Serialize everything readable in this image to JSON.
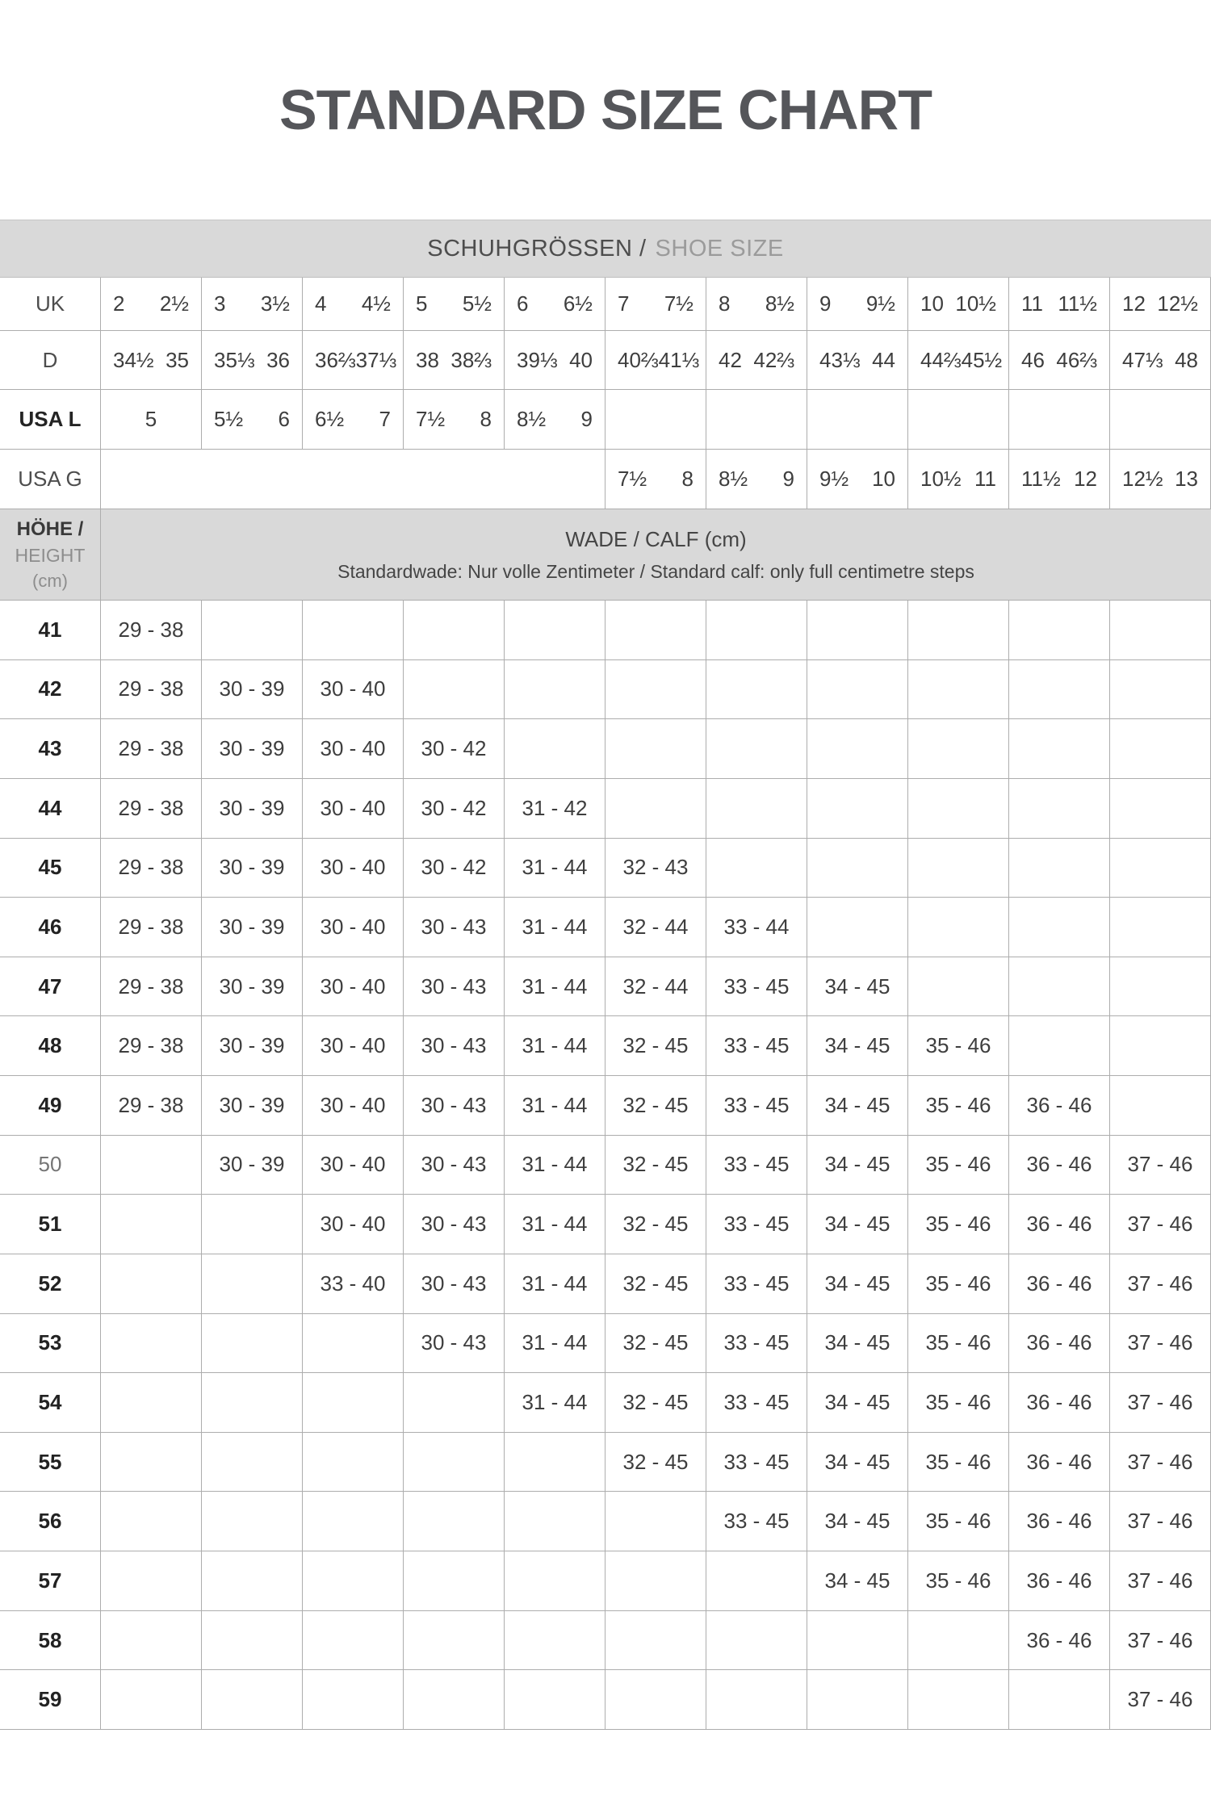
{
  "title": "STANDARD SIZE CHART",
  "shoe_size_header": {
    "de": "SCHUHGRÖSSEN /",
    "en": "SHOE SIZE"
  },
  "shoe_table": {
    "rows": [
      {
        "label": "UK",
        "style": "regular",
        "lead_merge": 0,
        "cells": [
          [
            "2",
            "2½"
          ],
          [
            "3",
            "3½"
          ],
          [
            "4",
            "4½"
          ],
          [
            "5",
            "5½"
          ],
          [
            "6",
            "6½"
          ],
          [
            "7",
            "7½"
          ],
          [
            "8",
            "8½"
          ],
          [
            "9",
            "9½"
          ],
          [
            "10",
            "10½"
          ],
          [
            "11",
            "11½"
          ],
          [
            "12",
            "12½"
          ]
        ]
      },
      {
        "label": "D",
        "style": "regular",
        "lead_merge": 0,
        "cells": [
          [
            "34½",
            "35"
          ],
          [
            "35⅓",
            "36"
          ],
          [
            "36⅔",
            "37⅓"
          ],
          [
            "38",
            "38⅔"
          ],
          [
            "39⅓",
            "40"
          ],
          [
            "40⅔",
            "41⅓"
          ],
          [
            "42",
            "42⅔"
          ],
          [
            "43⅓",
            "44"
          ],
          [
            "44⅔",
            "45½"
          ],
          [
            "46",
            "46⅔"
          ],
          [
            "47⅓",
            "48"
          ]
        ]
      },
      {
        "label": "USA L",
        "style": "bold",
        "lead_merge": 0,
        "cells": [
          [
            "5"
          ],
          [
            "5½",
            "6"
          ],
          [
            "6½",
            "7"
          ],
          [
            "7½",
            "8"
          ],
          [
            "8½",
            "9"
          ],
          [],
          [],
          [],
          [],
          [],
          []
        ]
      },
      {
        "label": "USA G",
        "style": "regular",
        "lead_merge": 5,
        "cells": [
          [
            "7½",
            "8"
          ],
          [
            "8½",
            "9"
          ],
          [
            "9½",
            "10"
          ],
          [
            "10½",
            "11"
          ],
          [
            "11½",
            "12"
          ],
          [
            "12½",
            "13"
          ]
        ]
      }
    ]
  },
  "calf_header": {
    "height_de": "HÖHE /",
    "height_en": "HEIGHT",
    "height_unit": "(cm)",
    "title": "WADE / CALF (cm)",
    "subtitle": "Standardwade: Nur volle Zentimeter / Standard calf: only full centimetre steps"
  },
  "calf_table": {
    "rows": [
      {
        "height": "41",
        "emphasis": true,
        "values": [
          "29 - 38",
          "",
          "",
          "",
          "",
          "",
          "",
          "",
          "",
          "",
          ""
        ]
      },
      {
        "height": "42",
        "emphasis": true,
        "values": [
          "29 - 38",
          "30 - 39",
          "30 - 40",
          "",
          "",
          "",
          "",
          "",
          "",
          "",
          ""
        ]
      },
      {
        "height": "43",
        "emphasis": true,
        "values": [
          "29 - 38",
          "30 - 39",
          "30 - 40",
          "30 - 42",
          "",
          "",
          "",
          "",
          "",
          "",
          ""
        ]
      },
      {
        "height": "44",
        "emphasis": true,
        "values": [
          "29 - 38",
          "30 - 39",
          "30 - 40",
          "30 - 42",
          "31 - 42",
          "",
          "",
          "",
          "",
          "",
          ""
        ]
      },
      {
        "height": "45",
        "emphasis": true,
        "values": [
          "29 - 38",
          "30 - 39",
          "30 - 40",
          "30 - 42",
          "31 - 44",
          "32 - 43",
          "",
          "",
          "",
          "",
          ""
        ]
      },
      {
        "height": "46",
        "emphasis": true,
        "values": [
          "29 - 38",
          "30 - 39",
          "30 - 40",
          "30 - 43",
          "31 - 44",
          "32 - 44",
          "33 - 44",
          "",
          "",
          "",
          ""
        ]
      },
      {
        "height": "47",
        "emphasis": true,
        "values": [
          "29 - 38",
          "30 - 39",
          "30 - 40",
          "30 - 43",
          "31 - 44",
          "32 - 44",
          "33 - 45",
          "34 - 45",
          "",
          "",
          ""
        ]
      },
      {
        "height": "48",
        "emphasis": true,
        "values": [
          "29 - 38",
          "30 - 39",
          "30 - 40",
          "30 - 43",
          "31 - 44",
          "32 - 45",
          "33 - 45",
          "34 - 45",
          "35 - 46",
          "",
          ""
        ]
      },
      {
        "height": "49",
        "emphasis": true,
        "values": [
          "29 - 38",
          "30 - 39",
          "30 - 40",
          "30 - 43",
          "31 - 44",
          "32 - 45",
          "33 - 45",
          "34 - 45",
          "35 - 46",
          "36 - 46",
          ""
        ]
      },
      {
        "height": "50",
        "emphasis": false,
        "values": [
          "",
          "30 - 39",
          "30 - 40",
          "30 - 43",
          "31 - 44",
          "32 - 45",
          "33 - 45",
          "34 - 45",
          "35 - 46",
          "36 - 46",
          "37 - 46"
        ]
      },
      {
        "height": "51",
        "emphasis": true,
        "values": [
          "",
          "",
          "30 - 40",
          "30 - 43",
          "31 - 44",
          "32 - 45",
          "33 - 45",
          "34 - 45",
          "35 - 46",
          "36 - 46",
          "37 - 46"
        ]
      },
      {
        "height": "52",
        "emphasis": true,
        "values": [
          "",
          "",
          "33 - 40",
          "30 - 43",
          "31 - 44",
          "32 - 45",
          "33 - 45",
          "34 - 45",
          "35 - 46",
          "36 - 46",
          "37 - 46"
        ]
      },
      {
        "height": "53",
        "emphasis": true,
        "values": [
          "",
          "",
          "",
          "30 - 43",
          "31 - 44",
          "32 - 45",
          "33 - 45",
          "34 - 45",
          "35 - 46",
          "36 - 46",
          "37 - 46"
        ]
      },
      {
        "height": "54",
        "emphasis": true,
        "values": [
          "",
          "",
          "",
          "",
          "31 - 44",
          "32 - 45",
          "33 - 45",
          "34 - 45",
          "35 - 46",
          "36 - 46",
          "37 - 46"
        ]
      },
      {
        "height": "55",
        "emphasis": true,
        "values": [
          "",
          "",
          "",
          "",
          "",
          "32 - 45",
          "33 - 45",
          "34 - 45",
          "35 - 46",
          "36 - 46",
          "37 - 46"
        ]
      },
      {
        "height": "56",
        "emphasis": true,
        "values": [
          "",
          "",
          "",
          "",
          "",
          "",
          "33 - 45",
          "34 - 45",
          "35 - 46",
          "36 - 46",
          "37 - 46"
        ]
      },
      {
        "height": "57",
        "emphasis": true,
        "values": [
          "",
          "",
          "",
          "",
          "",
          "",
          "",
          "34 - 45",
          "35 - 46",
          "36 - 46",
          "37 - 46"
        ]
      },
      {
        "height": "58",
        "emphasis": true,
        "values": [
          "",
          "",
          "",
          "",
          "",
          "",
          "",
          "",
          "",
          "36 - 46",
          "37 - 46"
        ]
      },
      {
        "height": "59",
        "emphasis": true,
        "values": [
          "",
          "",
          "",
          "",
          "",
          "",
          "",
          "",
          "",
          "",
          "37 - 46"
        ]
      }
    ]
  },
  "colors": {
    "band_bg": "#d9d9d9",
    "grid_line": "#adadad",
    "title_text": "#55565a",
    "cell_text": "#3e3e3e",
    "muted_text": "#9b9b9b"
  }
}
